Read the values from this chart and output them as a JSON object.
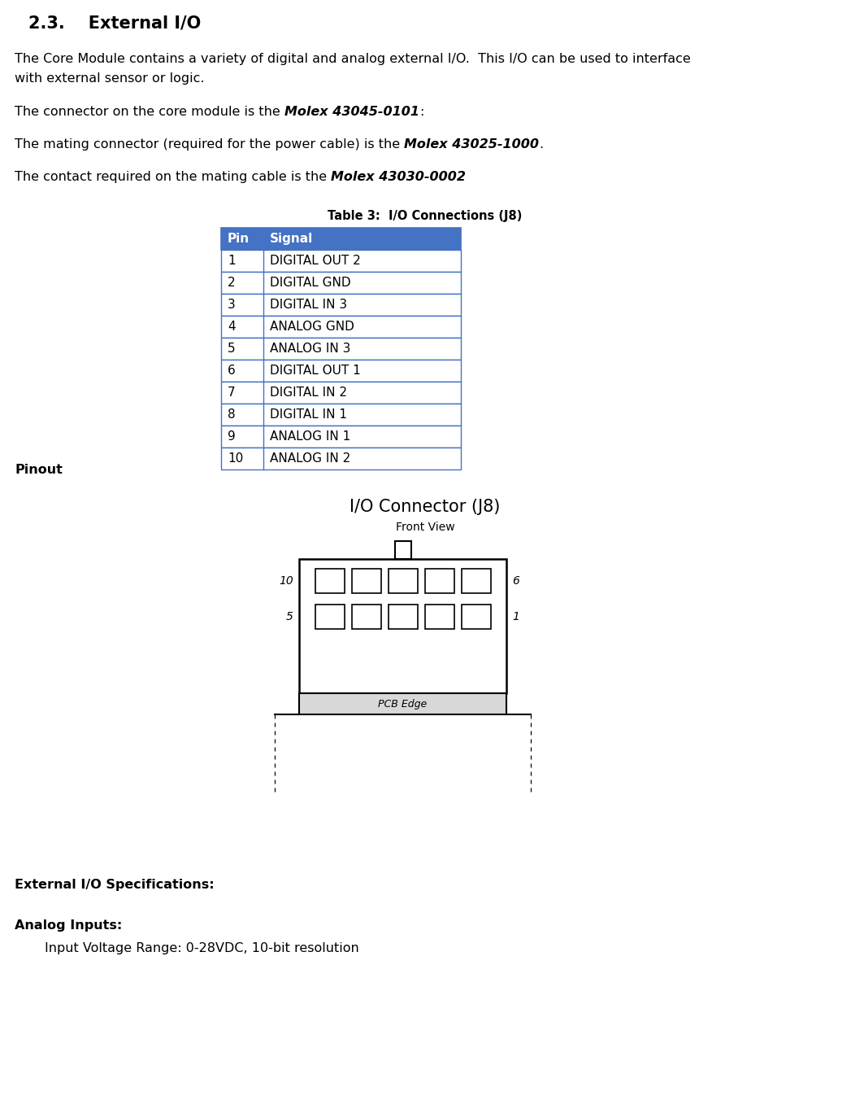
{
  "title_num": "2.3.",
  "title_text": "    External I/O",
  "para1_line1": "The Core Module contains a variety of digital and analog external I/O.  This I/O can be used to interface",
  "para1_line2": "with external sensor or logic.",
  "para2_normal": "The connector on the core module is the ",
  "para2_bold": "Molex 43045-0101",
  "para2_end": ":",
  "para3_normal": "The mating connector (required for the power cable) is the ",
  "para3_bold": "Molex 43025-1000",
  "para3_end": ".",
  "para4_normal": "The contact required on the mating cable is the ",
  "para4_bold": "Molex 43030-0002",
  "table_title": "Table 3:  I/O Connections (J8)",
  "table_header": [
    "Pin",
    "Signal"
  ],
  "table_data": [
    [
      "1",
      "DIGITAL OUT 2"
    ],
    [
      "2",
      "DIGITAL GND"
    ],
    [
      "3",
      "DIGITAL IN 3"
    ],
    [
      "4",
      "ANALOG GND"
    ],
    [
      "5",
      "ANALOG IN 3"
    ],
    [
      "6",
      "DIGITAL OUT 1"
    ],
    [
      "7",
      "DIGITAL IN 2"
    ],
    [
      "8",
      "DIGITAL IN 1"
    ],
    [
      "9",
      "ANALOG IN 1"
    ],
    [
      "10",
      "ANALOG IN 2"
    ]
  ],
  "header_bg": "#4472C4",
  "header_fg": "#FFFFFF",
  "row_bg": "#FFFFFF",
  "row_border": "#4472C4",
  "pinout_label": "Pinout",
  "connector_title": "I/O Connector (J8)",
  "connector_subtitle": "Front View",
  "pcb_label": "PCB Edge",
  "spec_title": "External I/O Specifications:",
  "analog_title": "Analog Inputs",
  "analog_colon": ":",
  "analog_spec": "Input Voltage Range: 0-28VDC, 10-bit resolution",
  "bg_color": "#FFFFFF",
  "text_color": "#000000",
  "font_size_title": 15,
  "font_size_body": 11.5,
  "font_size_table": 11,
  "font_size_connector": 15,
  "font_size_sub": 10
}
